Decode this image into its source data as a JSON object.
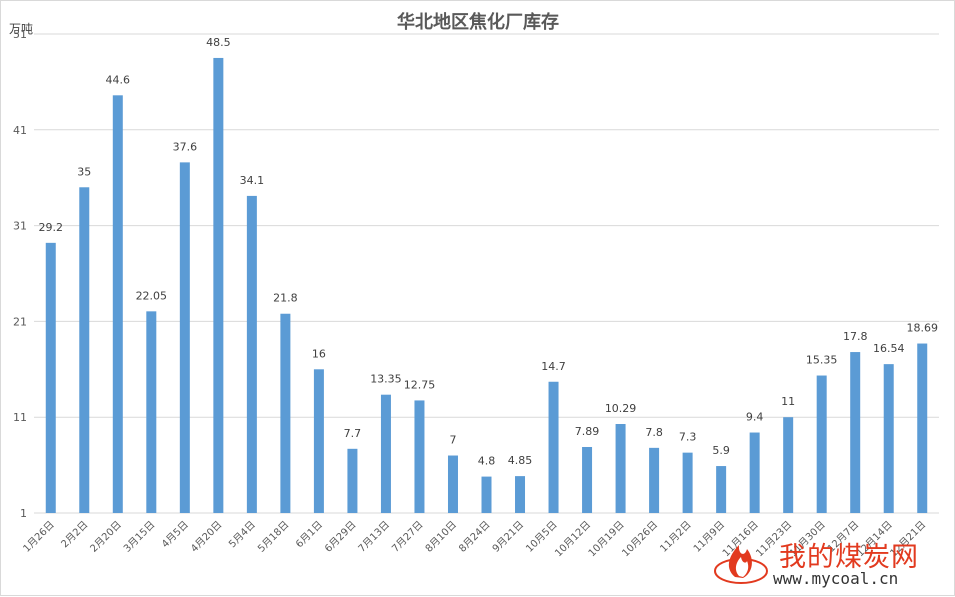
{
  "chart_data": {
    "type": "bar",
    "title": "华北地区焦化厂库存",
    "unit_label": "万吨",
    "xlabel": "",
    "ylabel": "",
    "ylim": [
      1,
      51
    ],
    "yticks": [
      1,
      11,
      21,
      31,
      41,
      51
    ],
    "grid": true,
    "legend": "none",
    "bar_color": "#5b9bd5",
    "categories": [
      "1月26日",
      "2月2日",
      "2月20日",
      "3月15日",
      "4月5日",
      "4月20日",
      "5月4日",
      "5月18日",
      "6月1日",
      "6月29日",
      "7月13日",
      "7月27日",
      "8月10日",
      "8月24日",
      "9月21日",
      "10月5日",
      "10月12日",
      "10月19日",
      "10月26日",
      "11月2日",
      "11月9日",
      "11月16日",
      "11月23日",
      "11月30日",
      "12月7日",
      "12月14日",
      "12月21日"
    ],
    "values": [
      29.2,
      35,
      44.6,
      22.05,
      37.6,
      48.5,
      34.1,
      21.8,
      16,
      7.7,
      13.35,
      12.75,
      7,
      4.8,
      4.85,
      14.7,
      7.89,
      10.29,
      7.8,
      7.3,
      5.9,
      9.4,
      11,
      15.35,
      17.8,
      16.54,
      18.69
    ],
    "data_labels": [
      "29.2",
      "35",
      "44.6",
      "22.05",
      "37.6",
      "48.5",
      "34.1",
      "21.8",
      "16",
      "7.7",
      "13.35",
      "12.75",
      "7",
      "4.8",
      "4.85",
      "14.7",
      "7.89",
      "10.29",
      "7.8",
      "7.3",
      "5.9",
      "9.4",
      "11",
      "15.35",
      "17.8",
      "16.54",
      "18.69"
    ]
  },
  "watermark": {
    "title": "我的煤炭网",
    "url": "www.mycoal.cn",
    "accent_color": "#e23a1f"
  }
}
